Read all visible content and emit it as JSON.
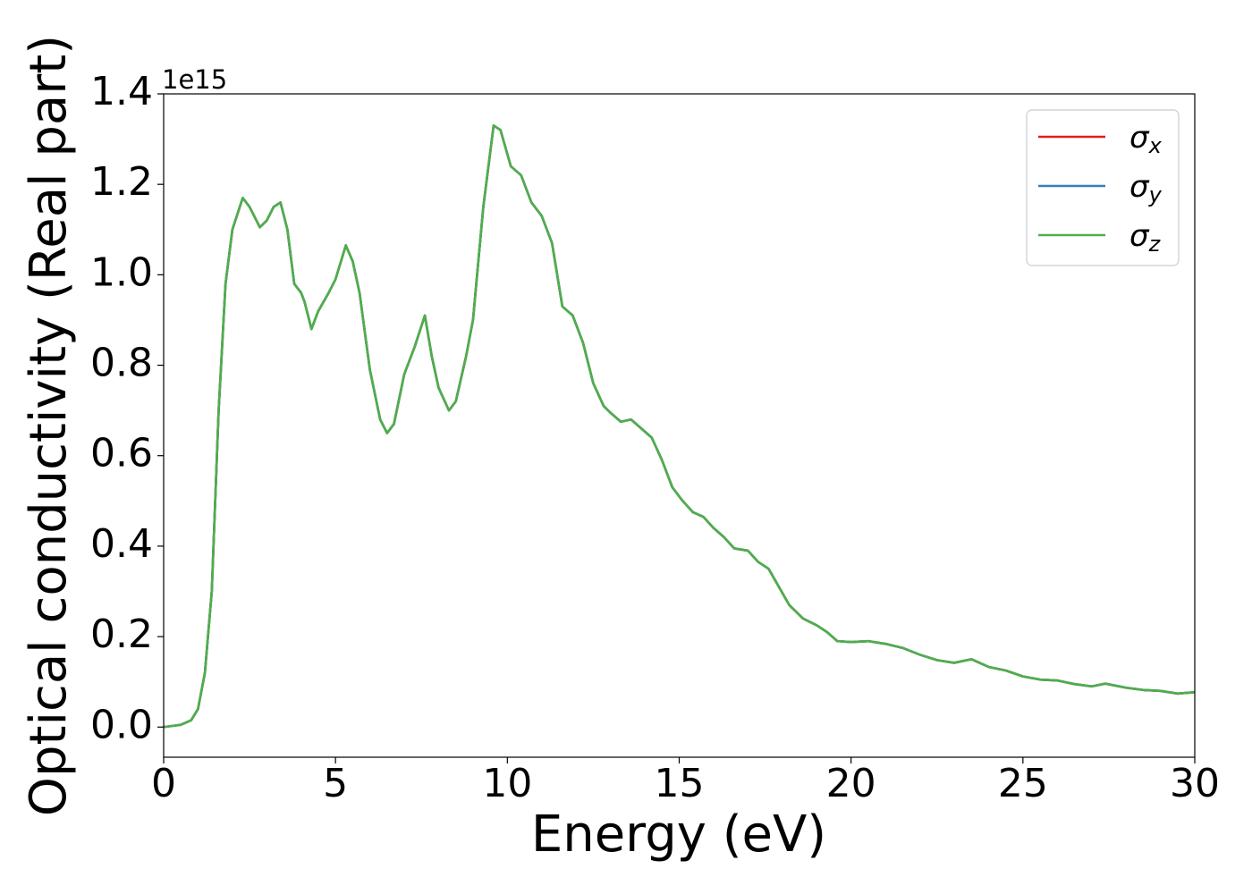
{
  "chart_data": {
    "type": "line",
    "xlabel": "Energy (eV)",
    "ylabel": "Optical conductivity (Real part)",
    "y_offset_label": "1e15",
    "x": [
      0,
      0.5,
      0.8,
      1.0,
      1.2,
      1.4,
      1.5,
      1.6,
      1.8,
      2.0,
      2.3,
      2.5,
      2.8,
      3.0,
      3.2,
      3.4,
      3.6,
      3.8,
      4.0,
      4.1,
      4.3,
      4.5,
      4.8,
      5.0,
      5.3,
      5.5,
      5.7,
      6.0,
      6.3,
      6.5,
      6.7,
      7.0,
      7.3,
      7.6,
      7.8,
      8.0,
      8.3,
      8.5,
      8.8,
      9.0,
      9.3,
      9.6,
      9.8,
      10.1,
      10.4,
      10.7,
      11.0,
      11.3,
      11.6,
      11.9,
      12.2,
      12.5,
      12.8,
      13.0,
      13.3,
      13.6,
      13.9,
      14.2,
      14.5,
      14.8,
      15.1,
      15.4,
      15.7,
      16.0,
      16.3,
      16.6,
      17.0,
      17.3,
      17.6,
      17.9,
      18.2,
      18.6,
      19.0,
      19.3,
      19.6,
      20.0,
      20.5,
      21.0,
      21.5,
      22.0,
      22.5,
      23.0,
      23.5,
      24.0,
      24.5,
      25.0,
      25.5,
      26.0,
      26.5,
      27.0,
      27.4,
      28.0,
      28.5,
      29.0,
      29.5,
      30.0
    ],
    "series": [
      {
        "name": "σx",
        "color": "#e41a1c",
        "values": [
          0.0,
          0.005,
          0.015,
          0.04,
          0.12,
          0.3,
          0.5,
          0.7,
          0.98,
          1.1,
          1.17,
          1.15,
          1.105,
          1.12,
          1.15,
          1.16,
          1.1,
          0.98,
          0.96,
          0.94,
          0.88,
          0.92,
          0.96,
          0.99,
          1.065,
          1.03,
          0.96,
          0.79,
          0.68,
          0.65,
          0.67,
          0.78,
          0.84,
          0.91,
          0.82,
          0.75,
          0.7,
          0.72,
          0.82,
          0.9,
          1.15,
          1.33,
          1.32,
          1.24,
          1.22,
          1.16,
          1.13,
          1.07,
          0.93,
          0.91,
          0.85,
          0.76,
          0.71,
          0.695,
          0.675,
          0.68,
          0.66,
          0.64,
          0.59,
          0.53,
          0.5,
          0.475,
          0.465,
          0.44,
          0.42,
          0.395,
          0.39,
          0.365,
          0.35,
          0.31,
          0.27,
          0.24,
          0.225,
          0.21,
          0.19,
          0.188,
          0.19,
          0.184,
          0.175,
          0.16,
          0.148,
          0.142,
          0.15,
          0.133,
          0.125,
          0.112,
          0.105,
          0.103,
          0.095,
          0.09,
          0.096,
          0.087,
          0.082,
          0.08,
          0.074,
          0.077
        ]
      },
      {
        "name": "σy",
        "color": "#377eb8",
        "values": [
          0.0,
          0.005,
          0.015,
          0.04,
          0.12,
          0.3,
          0.5,
          0.7,
          0.98,
          1.1,
          1.17,
          1.15,
          1.105,
          1.12,
          1.15,
          1.16,
          1.1,
          0.98,
          0.96,
          0.94,
          0.88,
          0.92,
          0.96,
          0.99,
          1.065,
          1.03,
          0.96,
          0.79,
          0.68,
          0.65,
          0.67,
          0.78,
          0.84,
          0.91,
          0.82,
          0.75,
          0.7,
          0.72,
          0.82,
          0.9,
          1.15,
          1.33,
          1.32,
          1.24,
          1.22,
          1.16,
          1.13,
          1.07,
          0.93,
          0.91,
          0.85,
          0.76,
          0.71,
          0.695,
          0.675,
          0.68,
          0.66,
          0.64,
          0.59,
          0.53,
          0.5,
          0.475,
          0.465,
          0.44,
          0.42,
          0.395,
          0.39,
          0.365,
          0.35,
          0.31,
          0.27,
          0.24,
          0.225,
          0.21,
          0.19,
          0.188,
          0.19,
          0.184,
          0.175,
          0.16,
          0.148,
          0.142,
          0.15,
          0.133,
          0.125,
          0.112,
          0.105,
          0.103,
          0.095,
          0.09,
          0.096,
          0.087,
          0.082,
          0.08,
          0.074,
          0.077
        ]
      },
      {
        "name": "σz",
        "color": "#4daf4a",
        "values": [
          0.0,
          0.005,
          0.015,
          0.04,
          0.12,
          0.3,
          0.5,
          0.7,
          0.98,
          1.1,
          1.17,
          1.15,
          1.105,
          1.12,
          1.15,
          1.16,
          1.1,
          0.98,
          0.96,
          0.94,
          0.88,
          0.92,
          0.96,
          0.99,
          1.065,
          1.03,
          0.96,
          0.79,
          0.68,
          0.65,
          0.67,
          0.78,
          0.84,
          0.91,
          0.82,
          0.75,
          0.7,
          0.72,
          0.82,
          0.9,
          1.15,
          1.33,
          1.32,
          1.24,
          1.22,
          1.16,
          1.13,
          1.07,
          0.93,
          0.91,
          0.85,
          0.76,
          0.71,
          0.695,
          0.675,
          0.68,
          0.66,
          0.64,
          0.59,
          0.53,
          0.5,
          0.475,
          0.465,
          0.44,
          0.42,
          0.395,
          0.39,
          0.365,
          0.35,
          0.31,
          0.27,
          0.24,
          0.225,
          0.21,
          0.19,
          0.188,
          0.19,
          0.184,
          0.175,
          0.16,
          0.148,
          0.142,
          0.15,
          0.133,
          0.125,
          0.112,
          0.105,
          0.103,
          0.095,
          0.09,
          0.096,
          0.087,
          0.082,
          0.08,
          0.074,
          0.077
        ]
      }
    ],
    "xlim": [
      0,
      30
    ],
    "xticks": [
      0,
      5,
      10,
      15,
      20,
      25,
      30
    ],
    "ylim": [
      -0.0667,
      1.4
    ],
    "yticks": [
      {
        "value": 0,
        "label": "0.0"
      },
      0.2,
      0.4,
      0.6,
      0.8,
      {
        "value": 1,
        "label": "1.0"
      },
      1.2,
      1.4
    ],
    "legend": "upper right",
    "grid": false
  }
}
